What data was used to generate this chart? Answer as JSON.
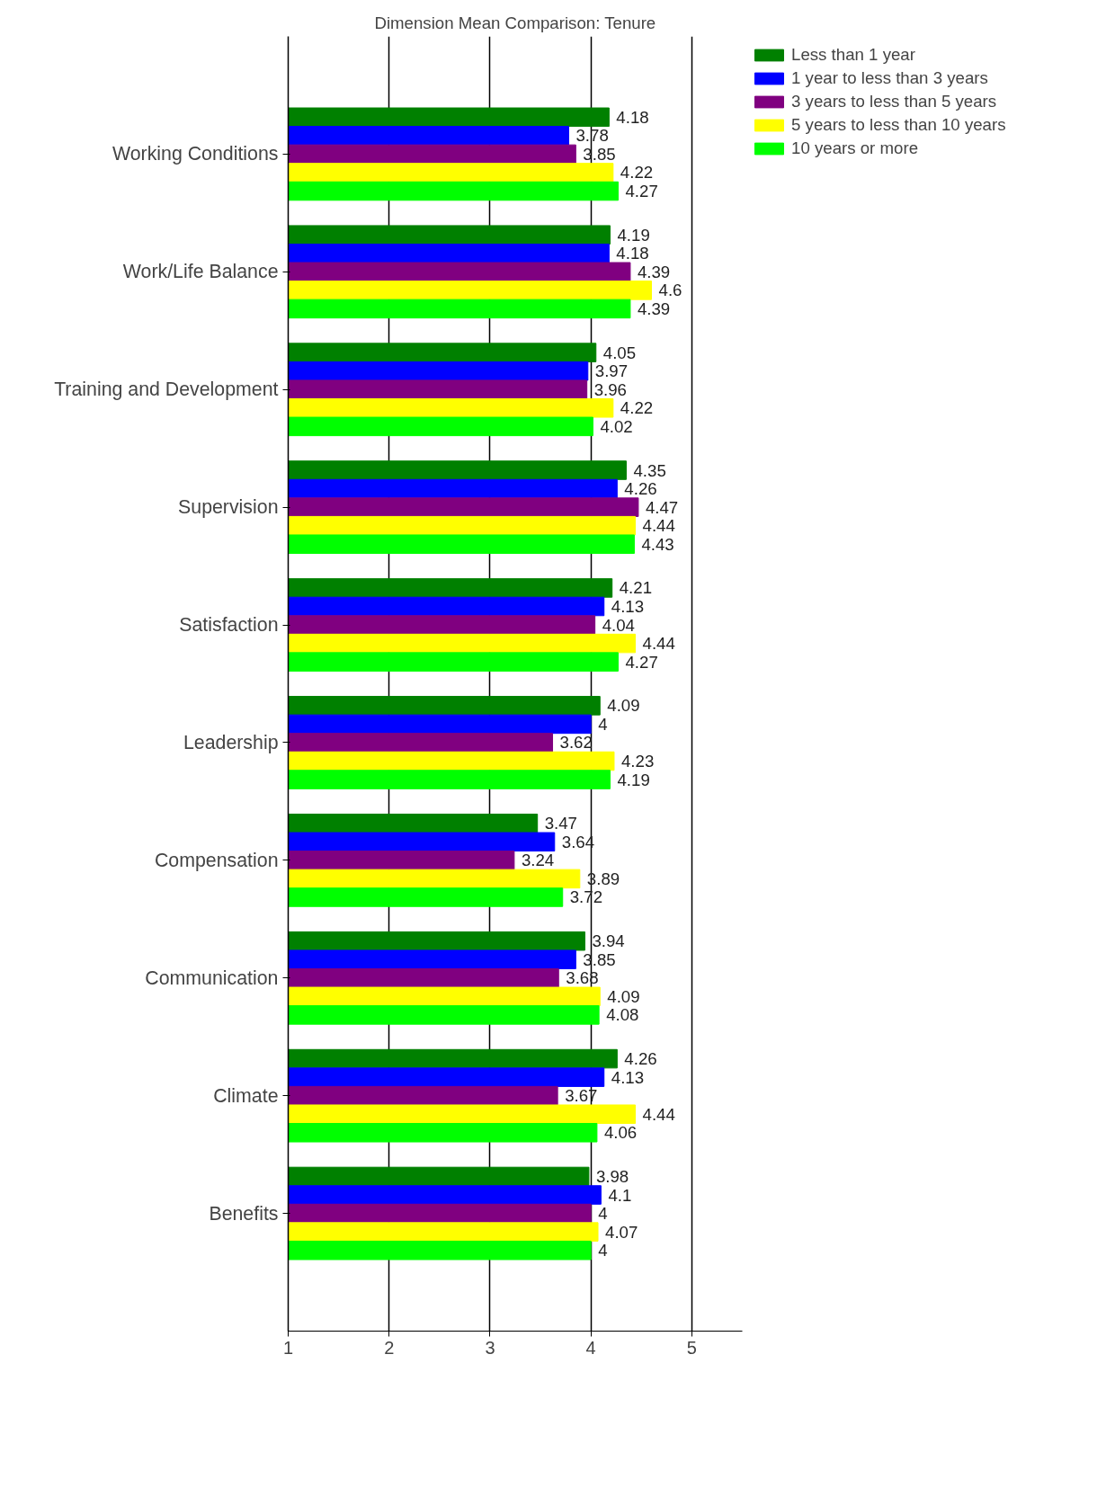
{
  "chart_data": {
    "type": "bar",
    "orientation": "horizontal",
    "title": "Dimension Mean Comparison: Tenure",
    "categories": [
      "Working Conditions",
      "Work/Life Balance",
      "Training and Development",
      "Supervision",
      "Satisfaction",
      "Leadership",
      "Compensation",
      "Communication",
      "Climate",
      "Benefits"
    ],
    "series": [
      {
        "name": "Less than 1 year",
        "color": "#008000",
        "values": [
          4.18,
          4.19,
          4.05,
          4.35,
          4.21,
          4.09,
          3.47,
          3.94,
          4.26,
          3.98
        ]
      },
      {
        "name": "1 year to less than 3 years",
        "color": "#0000ff",
        "values": [
          3.78,
          4.18,
          3.97,
          4.26,
          4.13,
          4,
          3.64,
          3.85,
          4.13,
          4.1
        ]
      },
      {
        "name": "3 years to less than 5 years",
        "color": "#800080",
        "values": [
          3.85,
          4.39,
          3.96,
          4.47,
          4.04,
          3.62,
          3.24,
          3.68,
          3.67,
          4
        ]
      },
      {
        "name": "5 years to less than 10 years",
        "color": "#ffff00",
        "values": [
          4.22,
          4.6,
          4.22,
          4.44,
          4.44,
          4.23,
          3.89,
          4.09,
          4.44,
          4.07
        ]
      },
      {
        "name": "10 years or more",
        "color": "#00ff00",
        "values": [
          4.27,
          4.39,
          4.02,
          4.43,
          4.27,
          4.19,
          3.72,
          4.08,
          4.06,
          4
        ]
      }
    ],
    "xlim": [
      1,
      5.5
    ],
    "xticks": [
      1,
      2,
      3,
      4,
      5
    ],
    "grid": "x",
    "legend": "top right",
    "data_labels": true
  }
}
